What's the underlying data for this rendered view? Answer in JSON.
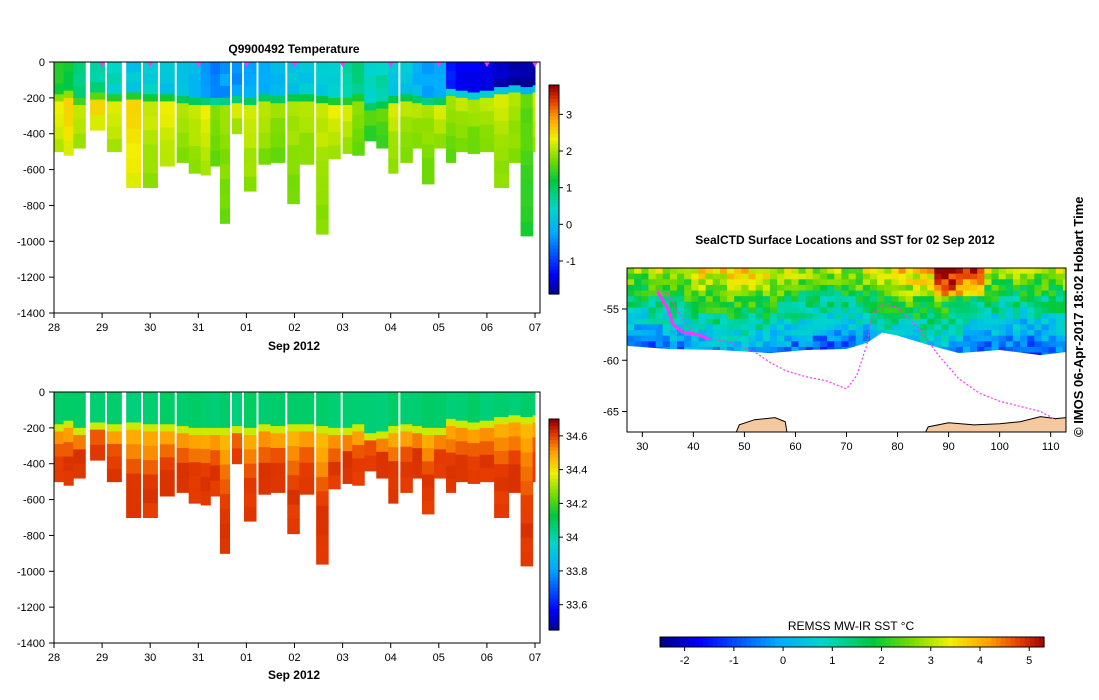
{
  "chart_data": [
    {
      "type": "heatmap",
      "title": "Q9900492  Temperature",
      "x_tick_labels": [
        "28",
        "29",
        "30",
        "31",
        "01",
        "02",
        "03",
        "04",
        "05",
        "06",
        "07"
      ],
      "x_range_days": [
        0,
        10
      ],
      "xlabel": "Sep 2012",
      "y_tick_values": [
        0,
        -200,
        -400,
        -600,
        -800,
        -1000,
        -1200,
        -1400
      ],
      "y_tick_labels": [
        "0",
        "-200",
        "-400",
        "-600",
        "-800",
        "-1000",
        "-1200",
        "-1400"
      ],
      "ylim": [
        -1400,
        0
      ],
      "colorbar": {
        "min": -1.9,
        "max": 3.8,
        "ticks": [
          "3",
          "2",
          "1",
          "0",
          "-1"
        ],
        "tick_values": [
          3,
          2,
          1,
          0,
          -1
        ],
        "scale": "jet"
      },
      "surface_markers_day": [
        1,
        2,
        3,
        4,
        5,
        6,
        7,
        8,
        9,
        10
      ],
      "profiles": [
        {
          "day": 0.0,
          "width": 0.2,
          "bottom": -500,
          "surface": 1.4,
          "mixed_depth": -180,
          "deep": 2.4
        },
        {
          "day": 0.2,
          "width": 0.2,
          "bottom": -520,
          "surface": 1.2,
          "mixed_depth": -160,
          "deep": 2.6
        },
        {
          "day": 0.4,
          "width": 0.25,
          "bottom": -480,
          "surface": 0.9,
          "mixed_depth": -200,
          "deep": 2.2
        },
        {
          "day": 0.75,
          "width": 0.3,
          "bottom": -380,
          "surface": 0.8,
          "mixed_depth": -170,
          "deep": 2.5
        },
        {
          "day": 1.1,
          "width": 0.3,
          "bottom": -500,
          "surface": 0.5,
          "mixed_depth": -180,
          "deep": 2.3
        },
        {
          "day": 1.5,
          "width": 0.3,
          "bottom": -700,
          "surface": 0.2,
          "mixed_depth": -170,
          "deep": 2.6
        },
        {
          "day": 1.85,
          "width": 0.3,
          "bottom": -700,
          "surface": 0.4,
          "mixed_depth": -180,
          "deep": 2.2
        },
        {
          "day": 2.2,
          "width": 0.3,
          "bottom": -580,
          "surface": 0.2,
          "mixed_depth": -180,
          "deep": 2.4
        },
        {
          "day": 2.55,
          "width": 0.25,
          "bottom": -560,
          "surface": 0.1,
          "mixed_depth": -190,
          "deep": 2.1
        },
        {
          "day": 2.8,
          "width": 0.25,
          "bottom": -620,
          "surface": 0.0,
          "mixed_depth": -200,
          "deep": 2.2
        },
        {
          "day": 3.05,
          "width": 0.2,
          "bottom": -630,
          "surface": -0.4,
          "mixed_depth": -200,
          "deep": 2.3
        },
        {
          "day": 3.25,
          "width": 0.2,
          "bottom": -580,
          "surface": -0.4,
          "mixed_depth": -200,
          "deep": 1.9
        },
        {
          "day": 3.45,
          "width": 0.2,
          "bottom": -900,
          "surface": -0.3,
          "mixed_depth": -200,
          "deep": 2.0
        },
        {
          "day": 3.7,
          "width": 0.2,
          "bottom": -400,
          "surface": -0.3,
          "mixed_depth": -190,
          "deep": 2.2
        },
        {
          "day": 3.95,
          "width": 0.25,
          "bottom": -720,
          "surface": -0.1,
          "mixed_depth": -200,
          "deep": 2.2
        },
        {
          "day": 4.25,
          "width": 0.25,
          "bottom": -570,
          "surface": 0.0,
          "mixed_depth": -180,
          "deep": 2.1
        },
        {
          "day": 4.5,
          "width": 0.3,
          "bottom": -560,
          "surface": 0.1,
          "mixed_depth": -190,
          "deep": 2.0
        },
        {
          "day": 4.85,
          "width": 0.25,
          "bottom": -790,
          "surface": 0.2,
          "mixed_depth": -180,
          "deep": 2.1
        },
        {
          "day": 5.1,
          "width": 0.3,
          "bottom": -570,
          "surface": 0.3,
          "mixed_depth": -180,
          "deep": 2.1
        },
        {
          "day": 5.45,
          "width": 0.25,
          "bottom": -960,
          "surface": 0.3,
          "mixed_depth": -190,
          "deep": 2.2
        },
        {
          "day": 5.7,
          "width": 0.25,
          "bottom": -540,
          "surface": 0.4,
          "mixed_depth": -200,
          "deep": 2.3
        },
        {
          "day": 6.0,
          "width": 0.2,
          "bottom": -510,
          "surface": 0.6,
          "mixed_depth": -200,
          "deep": 2.2
        },
        {
          "day": 6.2,
          "width": 0.25,
          "bottom": -520,
          "surface": 0.8,
          "mixed_depth": -180,
          "deep": 1.9
        },
        {
          "day": 6.45,
          "width": 0.25,
          "bottom": -440,
          "surface": 0.4,
          "mixed_depth": -230,
          "deep": 1.6
        },
        {
          "day": 6.7,
          "width": 0.25,
          "bottom": -480,
          "surface": 0.6,
          "mixed_depth": -220,
          "deep": 1.7
        },
        {
          "day": 6.95,
          "width": 0.2,
          "bottom": -620,
          "surface": 0.2,
          "mixed_depth": -190,
          "deep": 2.2
        },
        {
          "day": 7.2,
          "width": 0.25,
          "bottom": -560,
          "surface": 0.2,
          "mixed_depth": -180,
          "deep": 2.1
        },
        {
          "day": 7.45,
          "width": 0.2,
          "bottom": -480,
          "surface": 0.0,
          "mixed_depth": -190,
          "deep": 2.1
        },
        {
          "day": 7.65,
          "width": 0.25,
          "bottom": -680,
          "surface": -0.2,
          "mixed_depth": -200,
          "deep": 2.0
        },
        {
          "day": 7.9,
          "width": 0.25,
          "bottom": -480,
          "surface": -0.1,
          "mixed_depth": -200,
          "deep": 2.2
        },
        {
          "day": 8.15,
          "width": 0.2,
          "bottom": -560,
          "surface": -1.1,
          "mixed_depth": -150,
          "deep": 2.0
        },
        {
          "day": 8.35,
          "width": 0.25,
          "bottom": -500,
          "surface": -1.4,
          "mixed_depth": -160,
          "deep": 2.1
        },
        {
          "day": 8.6,
          "width": 0.25,
          "bottom": -510,
          "surface": -1.3,
          "mixed_depth": -170,
          "deep": 2.0
        },
        {
          "day": 8.85,
          "width": 0.3,
          "bottom": -500,
          "surface": -1.4,
          "mixed_depth": -160,
          "deep": 2.1
        },
        {
          "day": 9.15,
          "width": 0.3,
          "bottom": -700,
          "surface": -1.7,
          "mixed_depth": -140,
          "deep": 2.2
        },
        {
          "day": 9.45,
          "width": 0.25,
          "bottom": -560,
          "surface": -1.8,
          "mixed_depth": -130,
          "deep": 2.1
        },
        {
          "day": 9.7,
          "width": 0.25,
          "bottom": -970,
          "surface": -1.8,
          "mixed_depth": -140,
          "deep": 1.7
        },
        {
          "day": 9.95,
          "width": 0.2,
          "bottom": -500,
          "surface": -1.9,
          "mixed_depth": -130,
          "deep": 2.2
        }
      ]
    },
    {
      "type": "heatmap",
      "title": "",
      "x_tick_labels": [
        "28",
        "29",
        "30",
        "31",
        "01",
        "02",
        "03",
        "04",
        "05",
        "06",
        "07"
      ],
      "x_range_days": [
        0,
        10
      ],
      "xlabel": "Sep 2012",
      "y_tick_values": [
        0,
        -200,
        -400,
        -600,
        -800,
        -1000,
        -1200,
        -1400
      ],
      "y_tick_labels": [
        "0",
        "-200",
        "-400",
        "-600",
        "-800",
        "-1000",
        "-1200",
        "-1400"
      ],
      "ylim": [
        -1400,
        0
      ],
      "colorbar": {
        "min": 33.45,
        "max": 34.7,
        "ticks": [
          "34.6",
          "34.4",
          "34.2",
          "34",
          "33.8",
          "33.6"
        ],
        "tick_values": [
          34.6,
          34.4,
          34.2,
          34.0,
          33.8,
          33.6
        ],
        "scale": "jet"
      },
      "surface_value": 34.08,
      "deep_value": 34.62
    },
    {
      "type": "heatmap",
      "title": "SealCTD Surface Locations and SST for 02 Sep 2012",
      "xlim": [
        27,
        113
      ],
      "ylim": [
        -67,
        -51
      ],
      "x_ticks": [
        30,
        40,
        50,
        60,
        70,
        80,
        90,
        100,
        110
      ],
      "x_tick_labels": [
        "30",
        "40",
        "50",
        "60",
        "70",
        "80",
        "90",
        "100",
        "110"
      ],
      "y_ticks": [
        -55,
        -60,
        -65
      ],
      "y_tick_labels": [
        "-55",
        "-60",
        "-65"
      ],
      "colorbar_label": "REMSS MW-IR SST °C",
      "colorbar": {
        "min": -2.5,
        "max": 5.3,
        "ticks": [
          "-2",
          "-1",
          "0",
          "1",
          "2",
          "3",
          "4",
          "5"
        ],
        "tick_values": [
          -2,
          -1,
          0,
          1,
          2,
          3,
          4,
          5
        ],
        "scale": "jet"
      },
      "track_lon": [
        33,
        35,
        37,
        39,
        41,
        43,
        46,
        48,
        50,
        52,
        55,
        58,
        62,
        66,
        70,
        72,
        74,
        75,
        77,
        80,
        84,
        88,
        92,
        96,
        100,
        104,
        108,
        111
      ],
      "track_lat": [
        -53.1,
        -53.5,
        -55.2,
        -56.8,
        -57.6,
        -57.9,
        -58.1,
        -58.4,
        -58.8,
        -59.2,
        -60.2,
        -61.0,
        -61.6,
        -62.0,
        -62.8,
        -61.5,
        -58.5,
        -55.5,
        -54.6,
        -54.8,
        -56.8,
        -59.5,
        -61.8,
        -63.2,
        -64.0,
        -64.5,
        -65.0,
        -65.8
      ],
      "highlight_track_lon": [
        33,
        35,
        36,
        38,
        40,
        42,
        43
      ],
      "highlight_track_lat": [
        -53.3,
        -55.0,
        -56.5,
        -57.3,
        -57.4,
        -57.7,
        -58.0
      ]
    }
  ],
  "annotations": {
    "credit": "© IMOS 06-Apr-2017 18:02 Hobart Time"
  },
  "colors": {
    "track": "#ff33ff",
    "land": "#f5c9a0",
    "axis": "#000000"
  }
}
